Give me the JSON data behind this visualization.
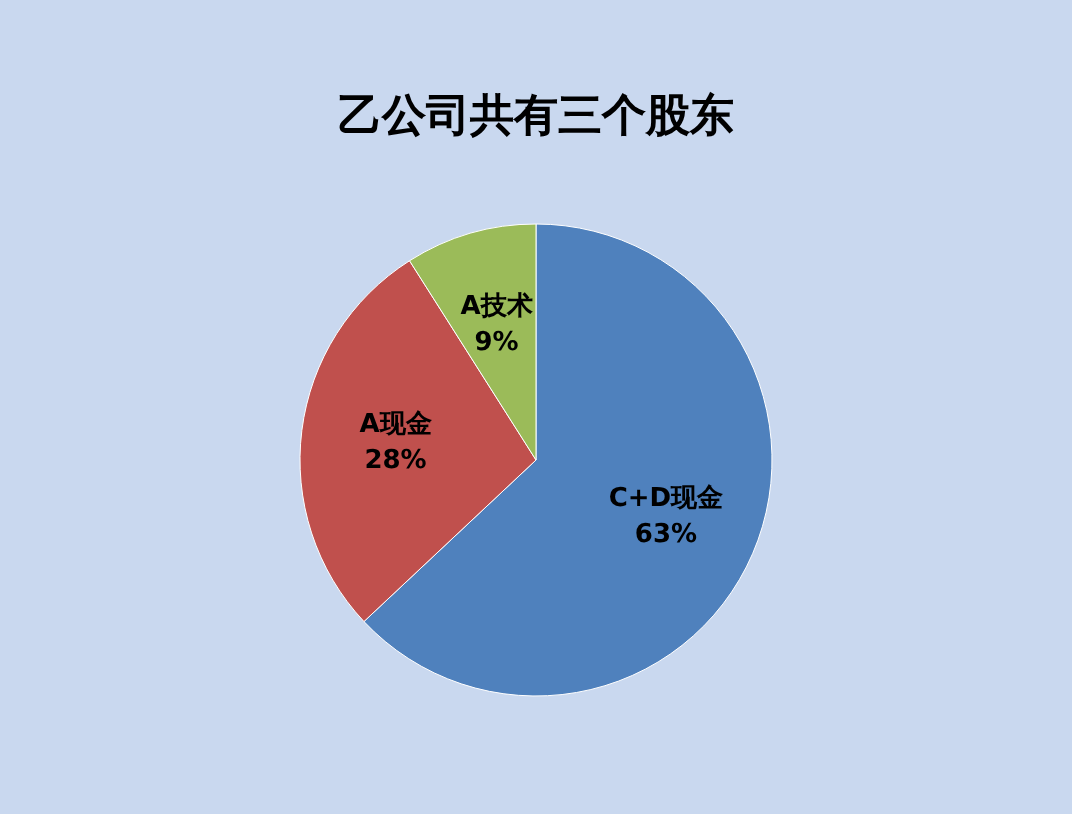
{
  "chart_data": {
    "type": "pie",
    "title": "乙公司共有三个股东",
    "categories": [
      "C+D现金",
      "A现金",
      "A技术"
    ],
    "values": [
      63,
      28,
      9
    ],
    "value_labels": [
      "63%",
      "28%",
      "9%"
    ],
    "colors": [
      "#4f81bd",
      "#c0504d",
      "#9bbb59"
    ]
  }
}
